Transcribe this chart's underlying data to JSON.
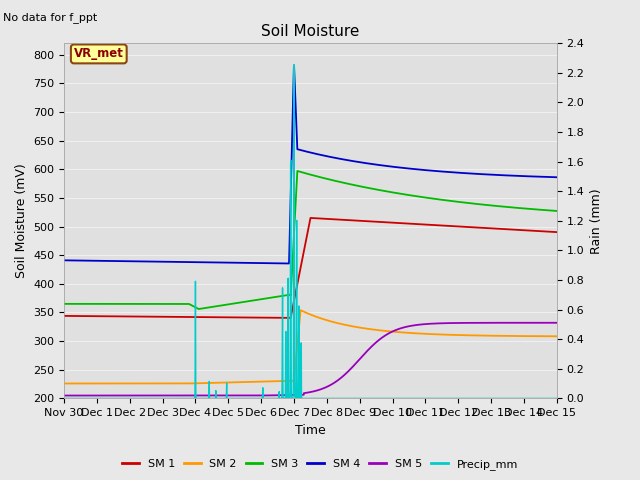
{
  "title": "Soil Moisture",
  "subtitle": "No data for f_ppt",
  "ylabel_left": "Soil Moisture (mV)",
  "ylabel_right": "Rain (mm)",
  "xlabel": "Time",
  "ylim_left": [
    200,
    820
  ],
  "ylim_right": [
    0.0,
    2.4
  ],
  "fig_facecolor": "#e8e8e8",
  "axes_facecolor": "#e0e0e0",
  "grid_color": "#f0f0f0",
  "vr_met_label": "VR_met",
  "series": {
    "SM1": {
      "color": "#cc0000",
      "label": "SM 1"
    },
    "SM2": {
      "color": "#ff9900",
      "label": "SM 2"
    },
    "SM3": {
      "color": "#00bb00",
      "label": "SM 3"
    },
    "SM4": {
      "color": "#0000cc",
      "label": "SM 4"
    },
    "SM5": {
      "color": "#9900bb",
      "label": "SM 5"
    },
    "Precip": {
      "color": "#00cccc",
      "label": "Precip_mm"
    }
  },
  "xtick_labels": [
    "Nov 30",
    "Dec 1",
    "Dec 2",
    "Dec 3",
    "Dec 4",
    "Dec 5",
    "Dec 6",
    "Dec 7",
    "Dec 8",
    "Dec 9",
    "Dec 10",
    "Dec 11",
    "Dec 12",
    "Dec 13",
    "Dec 14",
    "Dec 15"
  ],
  "yticks_left": [
    200,
    250,
    300,
    350,
    400,
    450,
    500,
    550,
    600,
    650,
    700,
    750,
    800
  ],
  "yticks_right": [
    0.0,
    0.2,
    0.4,
    0.6,
    0.8,
    1.0,
    1.2,
    1.4,
    1.6,
    1.8,
    2.0,
    2.2,
    2.4
  ]
}
